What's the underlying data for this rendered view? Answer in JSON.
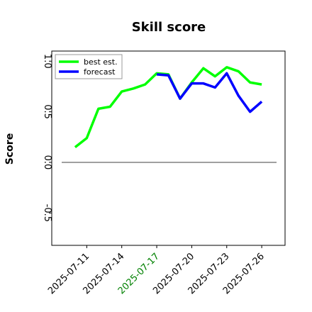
{
  "chart_data": {
    "type": "line",
    "title": "Skill score",
    "ylabel": "Score",
    "x": [
      "2025-07-10",
      "2025-07-11",
      "2025-07-12",
      "2025-07-13",
      "2025-07-14",
      "2025-07-15",
      "2025-07-16",
      "2025-07-17",
      "2025-07-18",
      "2025-07-19",
      "2025-07-20",
      "2025-07-21",
      "2025-07-22",
      "2025-07-23",
      "2025-07-24",
      "2025-07-25",
      "2025-07-26"
    ],
    "series": [
      {
        "name": "best est.",
        "color": "#00ff00",
        "values": [
          0.15,
          0.24,
          0.53,
          0.55,
          0.7,
          0.73,
          0.77,
          0.88,
          0.87,
          0.63,
          0.79,
          0.93,
          0.85,
          0.94,
          0.9,
          0.79,
          0.77
        ]
      },
      {
        "name": "forecast",
        "color": "#0000ff",
        "values": [
          null,
          null,
          null,
          null,
          null,
          null,
          null,
          0.87,
          0.86,
          0.63,
          0.78,
          0.78,
          0.74,
          0.88,
          0.66,
          0.5,
          0.6
        ]
      }
    ],
    "hline": 0,
    "xlim": [
      "2025-07-08",
      "2025-07-28"
    ],
    "xticks": [
      "2025-07-11",
      "2025-07-14",
      "2025-07-17",
      "2025-07-20",
      "2025-07-23",
      "2025-07-26"
    ],
    "xtick_colors": [
      "#000000",
      "#000000",
      "#008000",
      "#000000",
      "#000000",
      "#000000"
    ],
    "ylim": [
      -0.82,
      1.1
    ],
    "yticks": [
      -0.5,
      {
        "value": 0,
        "label": "0.0"
      },
      0.5,
      {
        "value": 1,
        "label": "1.0"
      }
    ],
    "legend": "upper left"
  }
}
